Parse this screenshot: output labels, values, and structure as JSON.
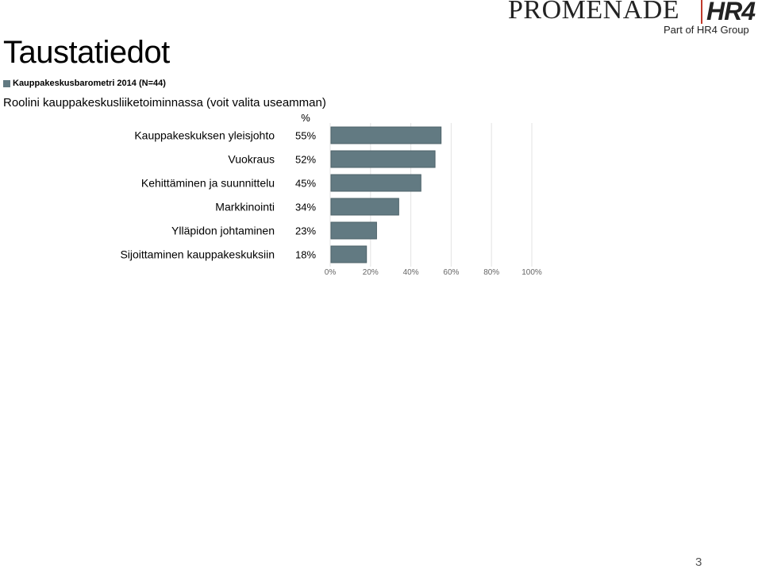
{
  "header": {
    "title": "Taustatiedot",
    "legend_label": "Kauppakeskusbarometri 2014 (N=44)",
    "question": "Roolini kauppakeskusliiketoiminnassa (voit valita useamman)"
  },
  "logo": {
    "wordmark": "PROMENADE",
    "mark": "HR4",
    "subtitle": "Part of HR4 Group"
  },
  "page_number": "3",
  "colors": {
    "bar": "#627a82",
    "bar_stroke": "#4e636a",
    "grid": "#e3e3e3",
    "logo_accent": "#c0392b",
    "logo_text": "#222222"
  },
  "chart_data": {
    "type": "bar",
    "orientation": "horizontal",
    "value_header": "%",
    "categories": [
      "Kauppakeskuksen yleisjohto",
      "Vuokraus",
      "Kehittäminen ja suunnittelu",
      "Markkinointi",
      "Ylläpidon johtaminen",
      "Sijoittaminen kauppakeskuksiin"
    ],
    "values": [
      55,
      52,
      45,
      34,
      23,
      18
    ],
    "value_labels": [
      "55%",
      "52%",
      "45%",
      "34%",
      "23%",
      "18%"
    ],
    "xlim": [
      0,
      100
    ],
    "ticks": [
      0,
      20,
      40,
      60,
      80,
      100
    ],
    "tick_labels": [
      "0%",
      "20%",
      "40%",
      "60%",
      "80%",
      "100%"
    ],
    "grid": true
  }
}
